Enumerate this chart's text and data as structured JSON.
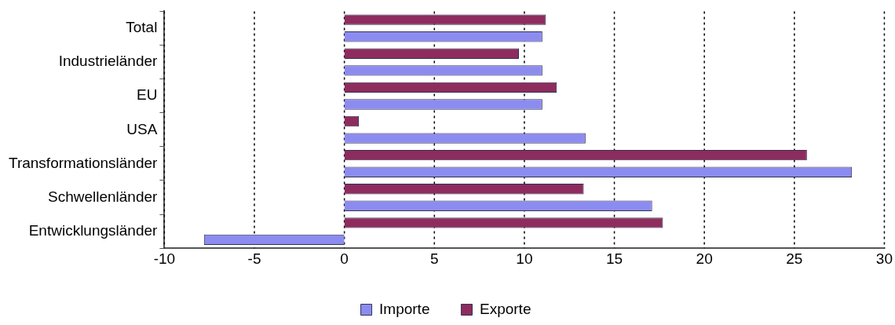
{
  "chart_data": {
    "type": "bar",
    "orientation": "horizontal",
    "categories": [
      "Total",
      "Industrieländer",
      "EU",
      "USA",
      "Transformationsländer",
      "Schwellenländer",
      "Entwicklungsländer"
    ],
    "series": [
      {
        "name": "Importe",
        "color": "#8c8cf0",
        "values": [
          11.0,
          11.0,
          11.0,
          13.4,
          28.2,
          17.1,
          -7.8
        ]
      },
      {
        "name": "Exporte",
        "color": "#8e2c5e",
        "values": [
          11.2,
          9.7,
          11.8,
          0.8,
          25.7,
          13.3,
          17.7
        ]
      }
    ],
    "xlim": [
      -10,
      30
    ],
    "xticks": [
      -10,
      -5,
      0,
      5,
      10,
      15,
      20,
      25,
      30
    ],
    "grid": "x",
    "legend": "bottom",
    "line_style": "dotted"
  }
}
